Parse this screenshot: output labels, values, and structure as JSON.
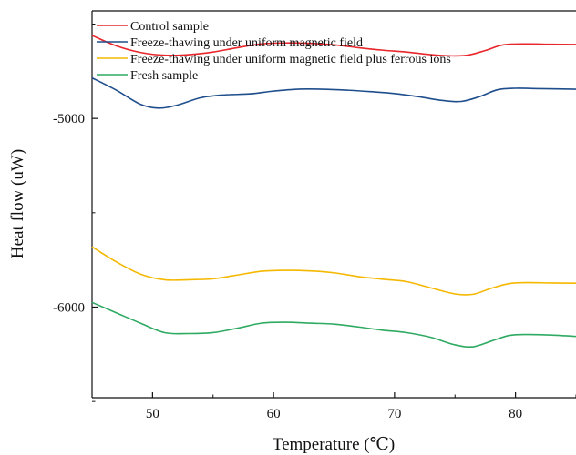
{
  "chart_data": {
    "type": "line",
    "xlabel": "Temperature (℃)",
    "ylabel": "Heat flow (uW)",
    "xlim": [
      45,
      85
    ],
    "ylim": [
      -6480,
      -4430
    ],
    "x_ticks": [
      50,
      60,
      70,
      80
    ],
    "y_ticks": [
      -5000,
      -6000
    ],
    "y_minor_ticks": [
      -4500,
      -5500,
      -6500
    ],
    "grid": false,
    "legend": "top-left",
    "series": [
      {
        "name": "Control sample",
        "color": "#e8262b",
        "x": [
          45,
          47,
          49,
          51,
          53,
          55,
          57,
          59,
          61,
          63,
          65,
          67,
          69,
          71,
          73,
          74.5,
          76,
          77.5,
          79,
          81,
          83,
          85
        ],
        "y": [
          -4560,
          -4615,
          -4650,
          -4665,
          -4662,
          -4648,
          -4625,
          -4605,
          -4600,
          -4602,
          -4610,
          -4625,
          -4638,
          -4648,
          -4662,
          -4668,
          -4665,
          -4640,
          -4610,
          -4605,
          -4607,
          -4608
        ]
      },
      {
        "name": "Freeze-thawing under uniform magnetic field",
        "color": "#1f4e8c",
        "x": [
          45,
          47,
          49,
          50.5,
          52,
          54,
          56,
          58,
          60,
          62,
          64,
          66,
          68,
          70,
          72,
          74,
          75.5,
          77,
          78.5,
          80,
          82,
          85
        ],
        "y": [
          -4785,
          -4850,
          -4925,
          -4945,
          -4930,
          -4890,
          -4875,
          -4870,
          -4855,
          -4845,
          -4845,
          -4850,
          -4858,
          -4868,
          -4885,
          -4905,
          -4910,
          -4885,
          -4848,
          -4840,
          -4842,
          -4845
        ]
      },
      {
        "name": "Freeze-thawing under uniform magnetic field plus ferrous ions",
        "color": "#f5b800",
        "x": [
          45,
          47,
          49,
          51,
          53,
          55,
          57,
          59,
          61,
          63,
          65,
          67,
          69,
          71,
          73,
          75,
          76.5,
          78,
          79.5,
          81,
          83,
          85
        ],
        "y": [
          -5680,
          -5760,
          -5825,
          -5855,
          -5855,
          -5850,
          -5830,
          -5810,
          -5805,
          -5808,
          -5818,
          -5838,
          -5852,
          -5865,
          -5898,
          -5930,
          -5932,
          -5900,
          -5875,
          -5870,
          -5872,
          -5873
        ]
      },
      {
        "name": "Fresh sample",
        "color": "#2eaa62",
        "x": [
          45,
          47,
          49,
          51,
          53,
          55,
          57,
          59,
          61,
          63,
          65,
          67,
          69,
          71,
          73,
          75,
          76.5,
          78,
          79.5,
          81,
          83,
          85
        ],
        "y": [
          -5975,
          -6030,
          -6085,
          -6135,
          -6140,
          -6135,
          -6112,
          -6085,
          -6080,
          -6085,
          -6090,
          -6105,
          -6122,
          -6135,
          -6160,
          -6200,
          -6210,
          -6180,
          -6150,
          -6145,
          -6148,
          -6155
        ]
      }
    ]
  }
}
